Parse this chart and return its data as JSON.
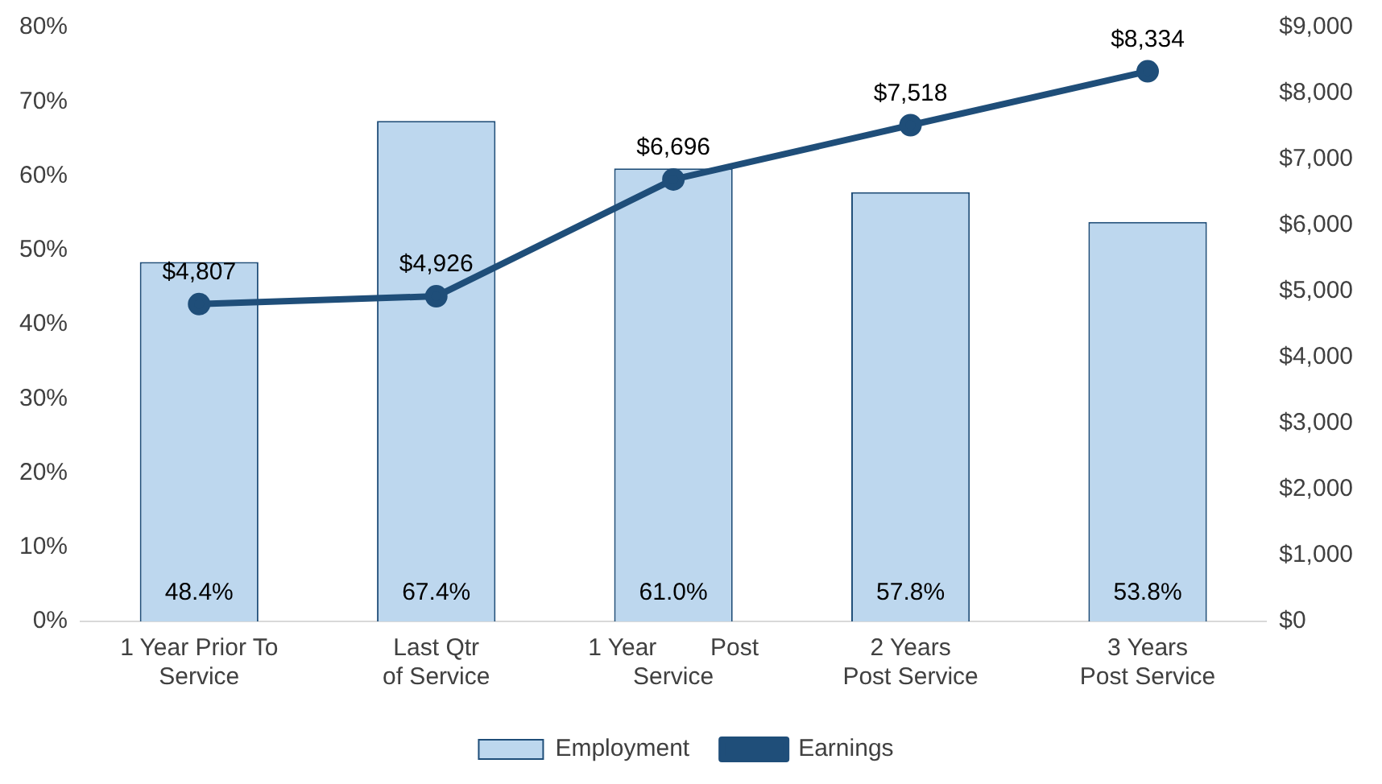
{
  "chart_data": {
    "type": "bar",
    "categories": [
      "1 Year Prior To\nService",
      "Last Qtr\nof Service",
      "1 Year        Post\nService",
      "2 Years\nPost Service",
      "3 Years\nPost Service"
    ],
    "series": [
      {
        "name": "Employment",
        "color": "#bdd7ee",
        "values": [
          48.4,
          67.4,
          61.0,
          57.8,
          53.8
        ],
        "value_labels": [
          "48.4%",
          "67.4%",
          "61.0%",
          "57.8%",
          "53.8%"
        ]
      },
      {
        "name": "Earnings",
        "type": "line",
        "axis": "y2",
        "color": "#1f4e79",
        "values": [
          4807,
          4926,
          6696,
          7518,
          8334
        ],
        "value_labels": [
          "$4,807",
          "$4,926",
          "$6,696",
          "$7,518",
          "$8,334"
        ]
      }
    ],
    "ylim": [
      0,
      80
    ],
    "yticks": [
      {
        "value": 0,
        "label": "0%"
      },
      {
        "value": 10,
        "label": "10%"
      },
      {
        "value": 20,
        "label": "20%"
      },
      {
        "value": 30,
        "label": "30%"
      },
      {
        "value": 40,
        "label": "40%"
      },
      {
        "value": 50,
        "label": "50%"
      },
      {
        "value": 60,
        "label": "60%"
      },
      {
        "value": 70,
        "label": "70%"
      },
      {
        "value": 80,
        "label": "80%"
      }
    ],
    "y2lim": [
      0,
      9000
    ],
    "y2ticks": [
      {
        "value": 0,
        "label": "$0"
      },
      {
        "value": 1000,
        "label": "$1,000"
      },
      {
        "value": 2000,
        "label": "$2,000"
      },
      {
        "value": 3000,
        "label": "$3,000"
      },
      {
        "value": 4000,
        "label": "$4,000"
      },
      {
        "value": 5000,
        "label": "$5,000"
      },
      {
        "value": 6000,
        "label": "$6,000"
      },
      {
        "value": 7000,
        "label": "$7,000"
      },
      {
        "value": 8000,
        "label": "$8,000"
      },
      {
        "value": 9000,
        "label": "$9,000"
      }
    ],
    "grid": false,
    "legend": "bottom",
    "marker": "circle",
    "line_style": "solid"
  }
}
